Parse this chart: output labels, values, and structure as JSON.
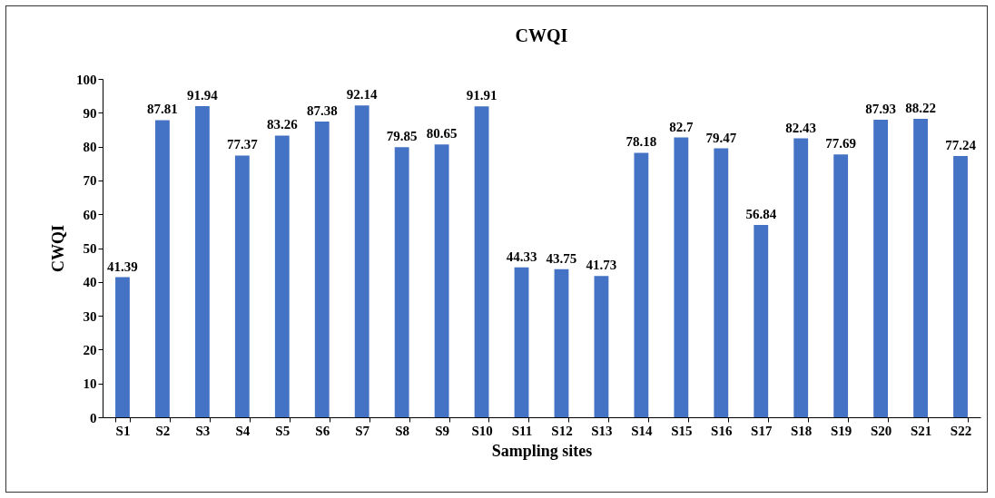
{
  "chart_data": {
    "type": "bar",
    "title": "CWQI",
    "xlabel": "Sampling sites",
    "ylabel": "CWQI",
    "categories": [
      "S1",
      "S2",
      "S3",
      "S4",
      "S5",
      "S6",
      "S7",
      "S8",
      "S9",
      "S10",
      "S11",
      "S12",
      "S13",
      "S14",
      "S15",
      "S16",
      "S17",
      "S18",
      "S19",
      "S20",
      "S21",
      "S22"
    ],
    "values": [
      41.39,
      87.81,
      91.94,
      77.37,
      83.26,
      87.38,
      92.14,
      79.85,
      80.65,
      91.91,
      44.33,
      43.75,
      41.73,
      78.18,
      82.7,
      79.47,
      56.84,
      82.43,
      77.69,
      87.93,
      88.22,
      77.24
    ],
    "color": "#4472c4",
    "ylim": [
      0,
      100
    ],
    "yticks": [
      0,
      10,
      20,
      30,
      40,
      50,
      60,
      70,
      80,
      90,
      100
    ],
    "data_labels": true
  }
}
